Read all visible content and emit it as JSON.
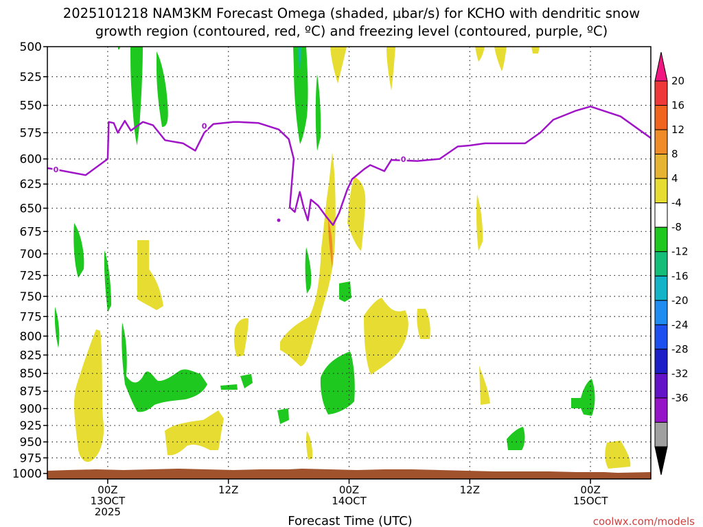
{
  "title_line1": "2025101218 NAM3KM Forecast Omega (shaded, µbar/s) for KCHO with dendritic snow",
  "title_line2": "growth region (contoured, red, ºC) and freezing level (contoured, purple, ºC)",
  "credit": "coolwx.com/models",
  "chart_data": {
    "type": "contour-timeheight",
    "title": "2025101218 NAM3KM Forecast Omega (shaded, µbar/s) for KCHO with dendritic snow growth region (contoured, red, ºC) and freezing level (contoured, purple, ºC)",
    "xlabel": "Forecast Time (UTC)",
    "ylabel": "",
    "x_ticks": [
      {
        "hour": 6,
        "l1": "00Z",
        "l2": "13OCT",
        "l3": "2025"
      },
      {
        "hour": 18,
        "l1": "12Z",
        "l2": "",
        "l3": ""
      },
      {
        "hour": 30,
        "l1": "00Z",
        "l2": "14OCT",
        "l3": ""
      },
      {
        "hour": 42,
        "l1": "12Z",
        "l2": "",
        "l3": ""
      },
      {
        "hour": 54,
        "l1": "00Z",
        "l2": "15OCT",
        "l3": ""
      }
    ],
    "xlim_forecast_hours": [
      0,
      60
    ],
    "y_levels_hpa": [
      500,
      525,
      550,
      575,
      600,
      625,
      650,
      675,
      700,
      725,
      750,
      775,
      800,
      825,
      850,
      875,
      900,
      925,
      950,
      975,
      1000
    ],
    "ylim_hpa": [
      500,
      1000
    ],
    "y_scale": "log-pressure",
    "grid": true,
    "colorbar": {
      "labels": [
        "20",
        "16",
        "12",
        "8",
        "4",
        "-4",
        "-8",
        "-12",
        "-16",
        "-20",
        "-24",
        "-28",
        "-32",
        "-36"
      ],
      "colors": [
        "#f01880",
        "#f03838",
        "#f06420",
        "#f08c28",
        "#e6b432",
        "#e6dc32",
        "#ffffff",
        "#1ec81e",
        "#14be78",
        "#14b4c8",
        "#1e8cf0",
        "#1e50f0",
        "#1e1ec8",
        "#6414c8",
        "#9614c8",
        "#a0a0a0",
        "#000000"
      ]
    },
    "freezing_level_contour": {
      "color": "#a014c8",
      "label": "0",
      "points": [
        [
          0,
          609
        ],
        [
          0.6,
          610
        ],
        [
          3.8,
          616
        ],
        [
          6,
          600
        ],
        [
          6.1,
          565
        ],
        [
          6.6,
          566
        ],
        [
          7,
          575
        ],
        [
          7.7,
          564
        ],
        [
          8.3,
          573
        ],
        [
          9.5,
          565
        ],
        [
          10.5,
          568
        ],
        [
          11.7,
          582
        ],
        [
          13.5,
          585
        ],
        [
          14.7,
          592
        ],
        [
          15.6,
          575
        ],
        [
          16.5,
          567
        ],
        [
          18.5,
          565
        ],
        [
          19,
          565
        ],
        [
          21,
          566
        ],
        [
          23,
          572
        ],
        [
          24,
          581
        ],
        [
          24.5,
          600
        ],
        [
          24.1,
          649
        ],
        [
          24.6,
          654
        ],
        [
          25.1,
          633
        ],
        [
          25.5,
          650
        ],
        [
          25.9,
          663
        ],
        [
          26.2,
          641
        ],
        [
          26.9,
          647
        ],
        [
          27.8,
          660
        ],
        [
          28.4,
          668
        ],
        [
          29,
          655
        ],
        [
          29.8,
          631
        ],
        [
          30.3,
          620
        ],
        [
          31.5,
          610
        ],
        [
          32.1,
          606
        ],
        [
          33.5,
          612
        ],
        [
          34.2,
          601
        ],
        [
          36.8,
          602
        ],
        [
          39,
          600
        ],
        [
          40.8,
          588
        ],
        [
          42,
          587
        ],
        [
          43.5,
          585
        ],
        [
          44.5,
          585
        ],
        [
          47.5,
          585
        ],
        [
          49,
          575
        ],
        [
          50.3,
          563
        ],
        [
          52.5,
          555
        ],
        [
          54,
          551
        ],
        [
          57,
          560
        ],
        [
          60,
          580
        ]
      ]
    },
    "surface_band_color": "#a0522d",
    "omega_shaded_regions_approx": [
      {
        "value_bin": "4 to 8",
        "hours": [
          2.2,
          5.8
        ],
        "hpa": [
          797,
          975
        ]
      },
      {
        "value_bin": "4 to 8",
        "hours": [
          10.0,
          12.6
        ],
        "hpa": [
          680,
          757
        ]
      },
      {
        "value_bin": "4 to 8",
        "hours": [
          11.2,
          17.7
        ],
        "hpa": [
          905,
          968
        ]
      },
      {
        "value_bin": "4 to 8",
        "hours": [
          18.6,
          20.2
        ],
        "hpa": [
          765,
          823
        ]
      },
      {
        "value_bin": "4 to 8",
        "hours": [
          22.8,
          28.2
        ],
        "hpa": [
          680,
          833
        ]
      },
      {
        "value_bin": "4 to 8",
        "hours": [
          26.7,
          28.8
        ],
        "hpa": [
          605,
          757
        ]
      },
      {
        "value_bin": "4 to 8",
        "hours": [
          29.6,
          31.4
        ],
        "hpa": [
          600,
          707
        ]
      },
      {
        "value_bin": "4 to 8",
        "hours": [
          30.5,
          35.2
        ],
        "hpa": [
          750,
          848
        ]
      },
      {
        "value_bin": "4 to 8",
        "hours": [
          42.4,
          43.6
        ],
        "hpa": [
          855,
          900
        ]
      },
      {
        "value_bin": "4 to 8",
        "hours": [
          41.5,
          42.4
        ],
        "hpa": [
          644,
          700
        ]
      },
      {
        "value_bin": "4 to 8",
        "hours": [
          55.3,
          57.8
        ],
        "hpa": [
          943,
          988
        ]
      },
      {
        "value_bin": "8 to 12",
        "hours": [
          27.2,
          28.0
        ],
        "hpa": [
          648,
          720
        ]
      },
      {
        "value_bin": "-8 to -4",
        "hours": [
          8.4,
          15.8
        ],
        "hpa": [
          843,
          905
        ]
      },
      {
        "value_bin": "-8 to -4",
        "hours": [
          26.7,
          30.4
        ],
        "hpa": [
          827,
          898
        ]
      },
      {
        "value_bin": "-8 to -4",
        "hours": [
          25.3,
          26.1
        ],
        "hpa": [
          500,
          565
        ]
      },
      {
        "value_bin": "-8 to -4",
        "hours": [
          8.2,
          9.4
        ],
        "hpa": [
          500,
          583
        ]
      },
      {
        "value_bin": "-8 to -4",
        "hours": [
          10.4,
          11.7
        ],
        "hpa": [
          500,
          565
        ]
      },
      {
        "value_bin": "-8 to -4",
        "hours": [
          2.3,
          3.5
        ],
        "hpa": [
          668,
          743
        ]
      },
      {
        "value_bin": "-8 to -4",
        "hours": [
          5.6,
          6.2
        ],
        "hpa": [
          693,
          770
        ]
      },
      {
        "value_bin": "-8 to -4",
        "hours": [
          0.6,
          1.2
        ],
        "hpa": [
          778,
          815
        ]
      },
      {
        "value_bin": "-8 to -4",
        "hours": [
          45.8,
          47.8
        ],
        "hpa": [
          926,
          955
        ]
      },
      {
        "value_bin": "-8 to -4",
        "hours": [
          52.6,
          54.3
        ],
        "hpa": [
          862,
          912
        ]
      }
    ]
  }
}
